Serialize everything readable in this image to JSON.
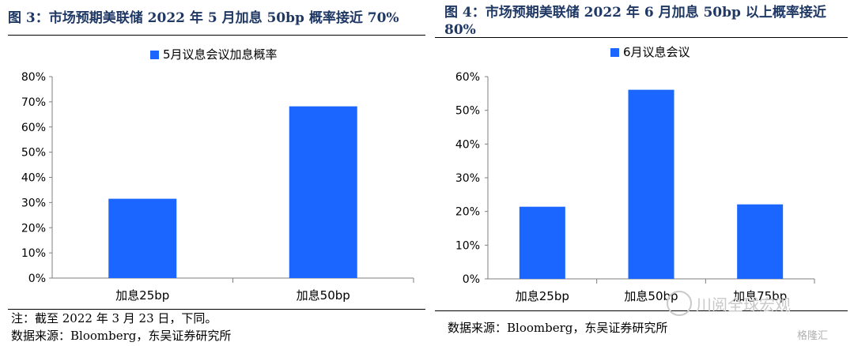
{
  "figures": [
    {
      "title": "图 3：市场预期美联储 2022 年 5 月加息 50bp 概率接近 70%"
    },
    {
      "title": "图 4：市场预期美联储 2022 年 6 月加息 50bp 以上概率接近 80%"
    }
  ],
  "notes": {
    "left_note": "注：截至 2022 年 3 月 23 日，下同。",
    "left_source": "数据来源：Bloomberg，东吴证券研究所",
    "right_source": "数据来源：Bloomberg，东吴证券研究所"
  },
  "watermark": {
    "text1": "格隆汇",
    "text2": "川阅全球宏观",
    "text3": "格隆汇"
  },
  "colors": {
    "bar": "#1a66ff",
    "title": "#1f3864",
    "axis": "#7f7f7f"
  },
  "chart_data": [
    {
      "type": "bar",
      "title": "",
      "categories": [
        "加息25bp",
        "加息50bp"
      ],
      "series": [
        {
          "name": "5月议息会议加息概率",
          "values": [
            31.5,
            68.2
          ]
        }
      ],
      "ylim": [
        0,
        80
      ],
      "yticks": [
        "0%",
        "10%",
        "20%",
        "30%",
        "40%",
        "50%",
        "60%",
        "70%",
        "80%"
      ],
      "grid": false,
      "legend": "top"
    },
    {
      "type": "bar",
      "title": "",
      "categories": [
        "加息25bp",
        "加息50bp",
        "加息75bp"
      ],
      "series": [
        {
          "name": "6月议息会议",
          "values": [
            21.4,
            56.1,
            22.1
          ]
        }
      ],
      "ylim": [
        0,
        60
      ],
      "yticks": [
        "0%",
        "10%",
        "20%",
        "30%",
        "40%",
        "50%",
        "60%"
      ],
      "grid": false,
      "legend": "top"
    }
  ]
}
